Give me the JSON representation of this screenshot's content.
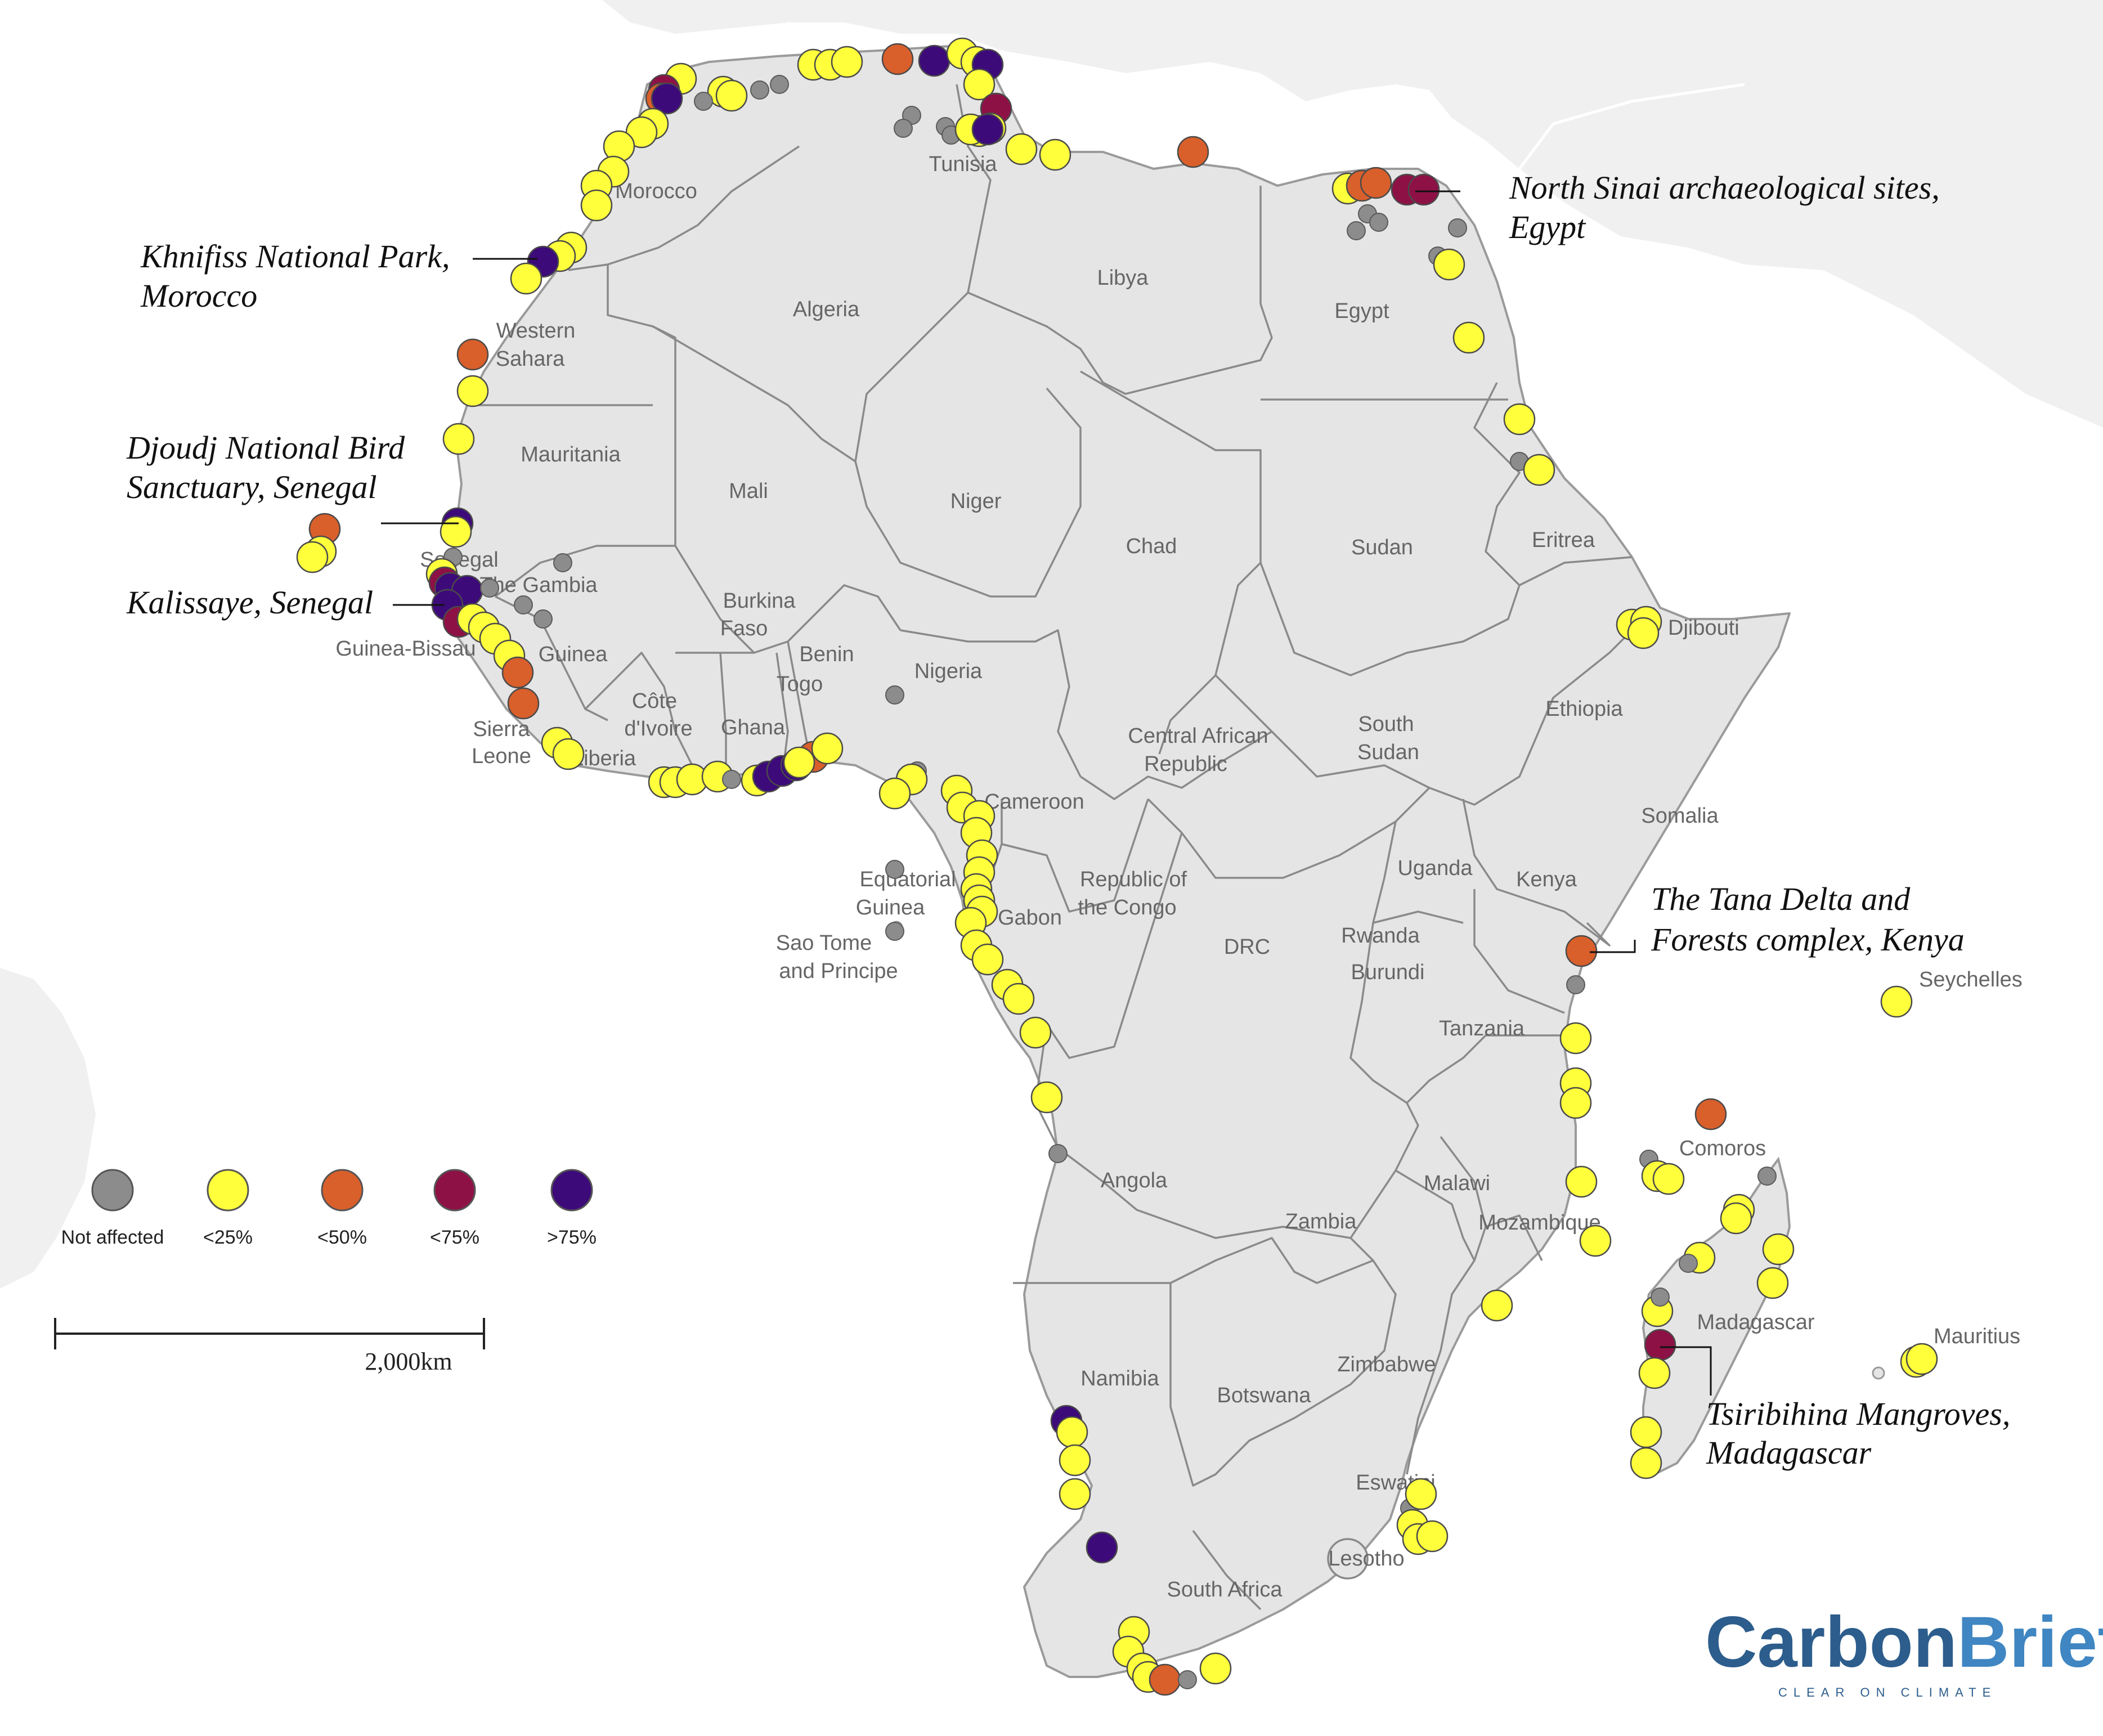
{
  "legend": {
    "items": [
      {
        "key": "not_affected",
        "label": "Not affected",
        "color": "#8c8c8c"
      },
      {
        "key": "lt25",
        "label": "<25%",
        "color": "#ffff3c"
      },
      {
        "key": "lt50",
        "label": "<50%",
        "color": "#d95f2b"
      },
      {
        "key": "lt75",
        "label": "<75%",
        "color": "#8e1146"
      },
      {
        "key": "gt75",
        "label": ">75%",
        "color": "#3d0a7a"
      }
    ]
  },
  "scale_bar": {
    "label": "2,000km"
  },
  "brand": {
    "word1": "Carbon",
    "word2": "Brief",
    "tagline": "CLEAR ON CLIMATE"
  },
  "callouts": {
    "khnifiss": [
      "Khnifiss National Park,",
      "Morocco"
    ],
    "djoudj": [
      "Djoudj National Bird",
      "Sanctuary, Senegal"
    ],
    "kalissaye": [
      "Kalissaye, Senegal"
    ],
    "north_sinai": [
      "North Sinai archaeological sites,",
      "Egypt"
    ],
    "tana": [
      "The Tana Delta and",
      "Forests complex, Kenya"
    ],
    "tsiribihina": [
      "Tsiribihina Mangroves,",
      "Madagascar"
    ]
  },
  "countries": {
    "morocco": "Morocco",
    "algeria": "Algeria",
    "tunisia": "Tunisia",
    "libya": "Libya",
    "egypt": "Egypt",
    "western_sahara": [
      "Western",
      "Sahara"
    ],
    "mauritania": "Mauritania",
    "mali": "Mali",
    "niger": "Niger",
    "chad": "Chad",
    "sudan": "Sudan",
    "eritrea": "Eritrea",
    "djibouti": "Djibouti",
    "ethiopia": "Ethiopia",
    "somalia": "Somalia",
    "senegal": "Senegal",
    "the_gambia": "The Gambia",
    "guinea_bissau": "Guinea-Bissau",
    "guinea": "Guinea",
    "sierra_leone": [
      "Sierra",
      "Leone"
    ],
    "liberia": "Liberia",
    "cote_divoire": [
      "Côte",
      "d'Ivoire"
    ],
    "ghana": "Ghana",
    "togo": "Togo",
    "benin": "Benin",
    "burkina_faso": [
      "Burkina",
      "Faso"
    ],
    "nigeria": "Nigeria",
    "cameroon": "Cameroon",
    "car": [
      "Central African",
      "Republic"
    ],
    "south_sudan": [
      "South",
      "Sudan"
    ],
    "equatorial_guinea": [
      "Equatorial",
      "Guinea"
    ],
    "sao_tome": [
      "Sao Tome",
      "and Principe"
    ],
    "gabon": "Gabon",
    "rep_congo": [
      "Republic of",
      "the Congo"
    ],
    "drc": "DRC",
    "uganda": "Uganda",
    "kenya": "Kenya",
    "rwanda": "Rwanda",
    "burundi": "Burundi",
    "tanzania": "Tanzania",
    "seychelles": "Seychelles",
    "comoros": "Comoros",
    "angola": "Angola",
    "zambia": "Zambia",
    "malawi": "Malawi",
    "mozambique": "Mozambique",
    "madagascar": "Madagascar",
    "mauritius": "Mauritius",
    "namibia": "Namibia",
    "botswana": "Botswana",
    "zimbabwe": "Zimbabwe",
    "eswatini": "Eswatini",
    "lesotho": "Lesotho",
    "south_africa": "South Africa"
  }
}
